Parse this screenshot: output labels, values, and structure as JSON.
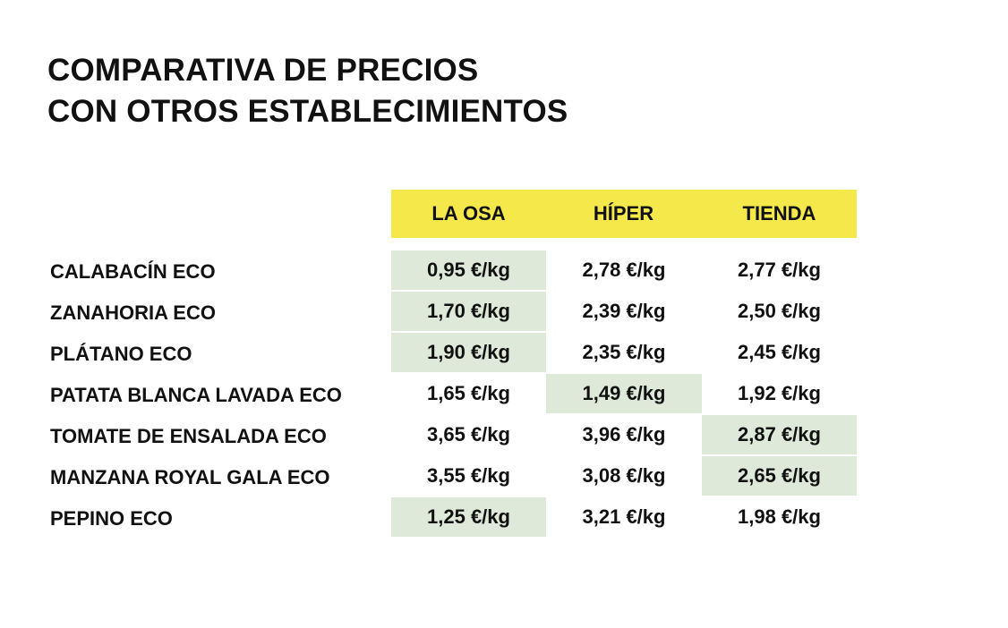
{
  "title": {
    "line1": "COMPARATIVA DE PRECIOS",
    "line2": "CON OTROS ESTABLECIMIENTOS"
  },
  "colors": {
    "header": "#f4e84a",
    "highlight": "#dfe9da",
    "text": "#111111"
  },
  "chart_data": {
    "type": "table",
    "title": "COMPARATIVA DE PRECIOS CON OTROS ESTABLECIMIENTOS",
    "columns": [
      "LA OSA",
      "HÍPER",
      "TIENDA"
    ],
    "rows": [
      {
        "label": "CALABACÍN ECO",
        "values": [
          "0,95 €/kg",
          "2,78 €/kg",
          "2,77 €/kg"
        ],
        "lowest": 0
      },
      {
        "label": "ZANAHORIA ECO",
        "values": [
          "1,70 €/kg",
          "2,39 €/kg",
          "2,50 €/kg"
        ],
        "lowest": 0
      },
      {
        "label": "PLÁTANO ECO",
        "values": [
          "1,90 €/kg",
          "2,35 €/kg",
          "2,45 €/kg"
        ],
        "lowest": 0
      },
      {
        "label": "PATATA BLANCA LAVADA ECO",
        "values": [
          "1,65 €/kg",
          "1,49 €/kg",
          "1,92 €/kg"
        ],
        "lowest": 1
      },
      {
        "label": "TOMATE DE ENSALADA ECO",
        "values": [
          "3,65 €/kg",
          "3,96 €/kg",
          "2,87 €/kg"
        ],
        "lowest": 2
      },
      {
        "label": "MANZANA ROYAL GALA ECO",
        "values": [
          "3,55 €/kg",
          "3,08 €/kg",
          "2,65 €/kg"
        ],
        "lowest": 2
      },
      {
        "label": "PEPINO ECO",
        "values": [
          "1,25 €/kg",
          "3,21 €/kg",
          "1,98 €/kg"
        ],
        "lowest": 0
      }
    ]
  }
}
